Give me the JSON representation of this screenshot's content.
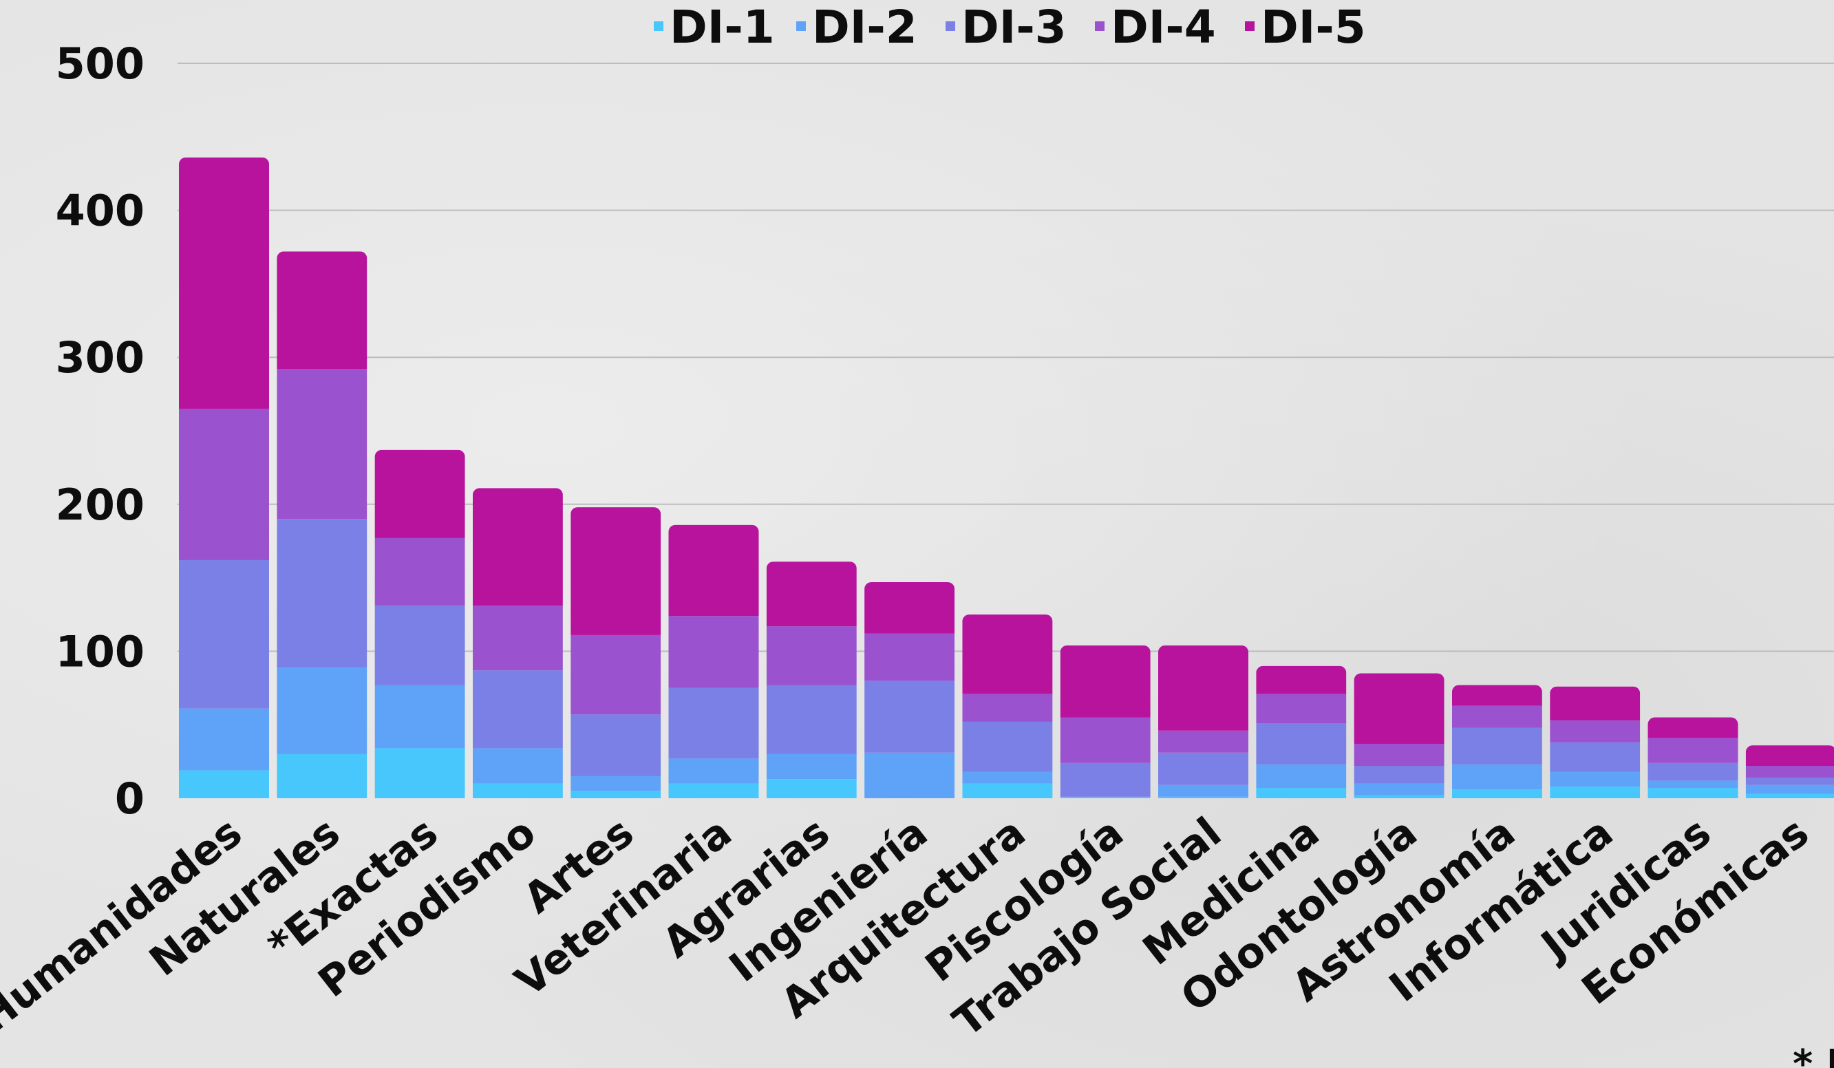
{
  "chart_data": {
    "type": "bar",
    "stacked": true,
    "title": "",
    "xlabel": "",
    "ylabel": "",
    "ylim": [
      0,
      500
    ],
    "yticks": [
      0,
      100,
      200,
      300,
      400,
      500
    ],
    "grid": true,
    "legend_position": "top-center",
    "categories": [
      "Humanidades",
      "Naturales",
      "*Exactas",
      "Periodismo",
      "Artes",
      "Veterinaria",
      "Agrarias",
      "Ingeniería",
      "Arquitectura",
      "Piscología",
      "Trabajo Social",
      "Medicina",
      "Odontología",
      "Astronomía",
      "Informática",
      "Juridicas",
      "Económicas"
    ],
    "series": [
      {
        "name": "DI-1",
        "color": "#47c7fb",
        "values": [
          19,
          30,
          34,
          10,
          5,
          10,
          13,
          0,
          10,
          1,
          1,
          7,
          2,
          6,
          8,
          7,
          3
        ]
      },
      {
        "name": "DI-2",
        "color": "#5fa3f8",
        "values": [
          42,
          59,
          43,
          24,
          10,
          17,
          17,
          31,
          8,
          0,
          8,
          16,
          8,
          17,
          10,
          5,
          6
        ]
      },
      {
        "name": "DI-3",
        "color": "#7b80e6",
        "values": [
          101,
          101,
          54,
          53,
          42,
          48,
          47,
          49,
          34,
          23,
          22,
          28,
          12,
          25,
          20,
          12,
          5
        ]
      },
      {
        "name": "DI-4",
        "color": "#9b52cf",
        "values": [
          103,
          102,
          46,
          44,
          54,
          49,
          40,
          32,
          19,
          31,
          15,
          20,
          15,
          15,
          15,
          17,
          8
        ]
      },
      {
        "name": "DI-5",
        "color": "#b8139c",
        "values": [
          171,
          80,
          60,
          80,
          87,
          62,
          44,
          35,
          54,
          49,
          58,
          19,
          48,
          14,
          23,
          14,
          14
        ]
      }
    ],
    "footnote": "* E"
  }
}
